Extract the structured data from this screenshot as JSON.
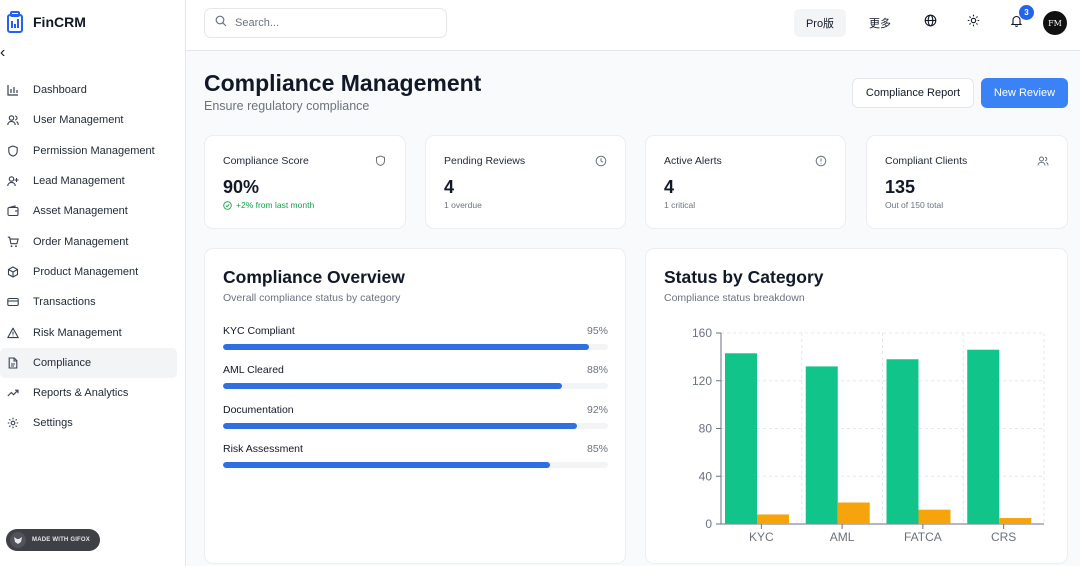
{
  "app": {
    "name": "FinCRM",
    "collapse_glyph": "‹"
  },
  "sidebar": {
    "items": [
      {
        "label": "Dashboard",
        "icon": "bar-chart-icon"
      },
      {
        "label": "User Management",
        "icon": "users-icon"
      },
      {
        "label": "Permission Management",
        "icon": "shield-icon"
      },
      {
        "label": "Lead Management",
        "icon": "user-plus-icon"
      },
      {
        "label": "Asset Management",
        "icon": "wallet-icon"
      },
      {
        "label": "Order Management",
        "icon": "cart-icon"
      },
      {
        "label": "Product Management",
        "icon": "package-icon"
      },
      {
        "label": "Transactions",
        "icon": "credit-card-icon"
      },
      {
        "label": "Risk Management",
        "icon": "alert-triangle-icon"
      },
      {
        "label": "Compliance",
        "icon": "file-icon",
        "active": true
      },
      {
        "label": "Reports & Analytics",
        "icon": "trend-up-icon"
      },
      {
        "label": "Settings",
        "icon": "gear-icon"
      }
    ],
    "made_with": "MADE WITH GIFOX"
  },
  "header": {
    "search_placeholder": "Search...",
    "pro_label": "Pro版",
    "more_label": "更多",
    "notification_count": "3",
    "avatar_initials": "FM"
  },
  "page": {
    "title": "Compliance Management",
    "subtitle": "Ensure regulatory compliance",
    "report_button": "Compliance Report",
    "review_button": "New Review"
  },
  "stats": [
    {
      "title": "Compliance Score",
      "value": "90%",
      "sub": "+2% from last month",
      "icon": "shield-icon",
      "positive": true
    },
    {
      "title": "Pending Reviews",
      "value": "4",
      "sub": "1 overdue",
      "icon": "clock-icon"
    },
    {
      "title": "Active Alerts",
      "value": "4",
      "sub": "1 critical",
      "icon": "alert-circle-icon"
    },
    {
      "title": "Compliant Clients",
      "value": "135",
      "sub": "Out of 150 total",
      "icon": "users-icon"
    }
  ],
  "overview": {
    "title": "Compliance Overview",
    "subtitle": "Overall compliance status by category",
    "items": [
      {
        "label": "KYC Compliant",
        "percent_label": "95%",
        "percent": 95
      },
      {
        "label": "AML Cleared",
        "percent_label": "88%",
        "percent": 88
      },
      {
        "label": "Documentation",
        "percent_label": "92%",
        "percent": 92
      },
      {
        "label": "Risk Assessment",
        "percent_label": "85%",
        "percent": 85
      }
    ]
  },
  "status_chart": {
    "title": "Status by Category",
    "subtitle": "Compliance status breakdown"
  },
  "chart_data": {
    "type": "bar",
    "categories": [
      "KYC",
      "AML",
      "FATCA",
      "CRS"
    ],
    "series": [
      {
        "name": "",
        "values": [
          143,
          132,
          138,
          146
        ],
        "color": "#10c48a"
      },
      {
        "name": "",
        "values": [
          8,
          18,
          12,
          5
        ],
        "color": "#f5a50b"
      }
    ],
    "ylim": [
      0,
      160
    ],
    "yticks": [
      "0",
      "40",
      "80",
      "120",
      "160"
    ],
    "grid": true,
    "title": "",
    "xlabel": "",
    "ylabel": ""
  },
  "colors": {
    "accent": "#3b82f6",
    "progress": "#2f6fdf",
    "green": "#10c48a",
    "amber": "#f5a50b"
  }
}
